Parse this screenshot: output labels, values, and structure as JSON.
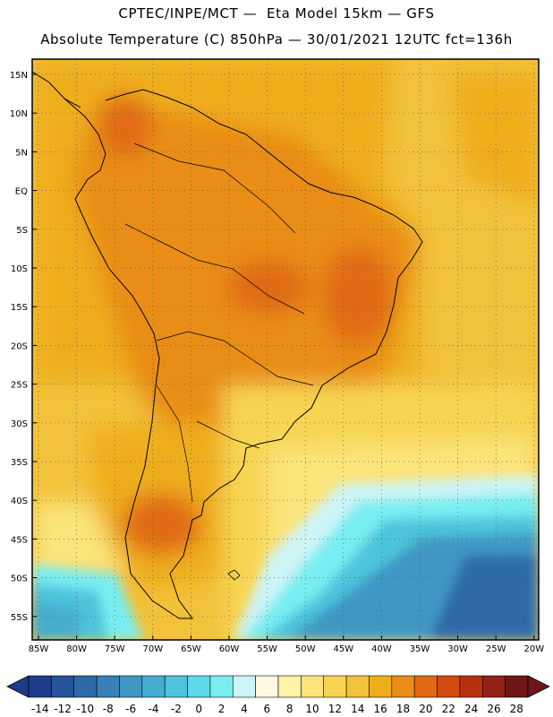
{
  "header": {
    "line1": "CPTEC/INPE/MCT —  Eta Model 15km — GFS",
    "line2": "Absolute Temperature (C) 850hPa — 30/01/2021 12UTC fct=136h"
  },
  "map": {
    "lat_labels": [
      "15N",
      "10N",
      "5N",
      "EQ",
      "5S",
      "10S",
      "15S",
      "20S",
      "25S",
      "30S",
      "35S",
      "40S",
      "45S",
      "50S",
      "55S"
    ],
    "lon_labels": [
      "85W",
      "80W",
      "75W",
      "70W",
      "65W",
      "60W",
      "55W",
      "50W",
      "45W",
      "40W",
      "35W",
      "30W",
      "25W",
      "20W"
    ]
  },
  "colorbar": {
    "labels": [
      "-14",
      "-12",
      "-10",
      "-8",
      "-6",
      "-4",
      "-2",
      "0",
      "2",
      "4",
      "6",
      "8",
      "10",
      "12",
      "14",
      "16",
      "18",
      "20",
      "22",
      "24",
      "26",
      "28"
    ],
    "colors": [
      "#1f3c8a",
      "#25549a",
      "#2f6aa8",
      "#3880b5",
      "#3f97c3",
      "#45aed0",
      "#4ec4dc",
      "#5fd9e8",
      "#78eef2",
      "#cdf4f6",
      "#fef8e0",
      "#fdf3a6",
      "#fbe47a",
      "#f7d552",
      "#f2c23a",
      "#eeae1c",
      "#e98d18",
      "#e06a12",
      "#d24a0f",
      "#b8310e",
      "#932216",
      "#6e1618"
    ]
  }
}
